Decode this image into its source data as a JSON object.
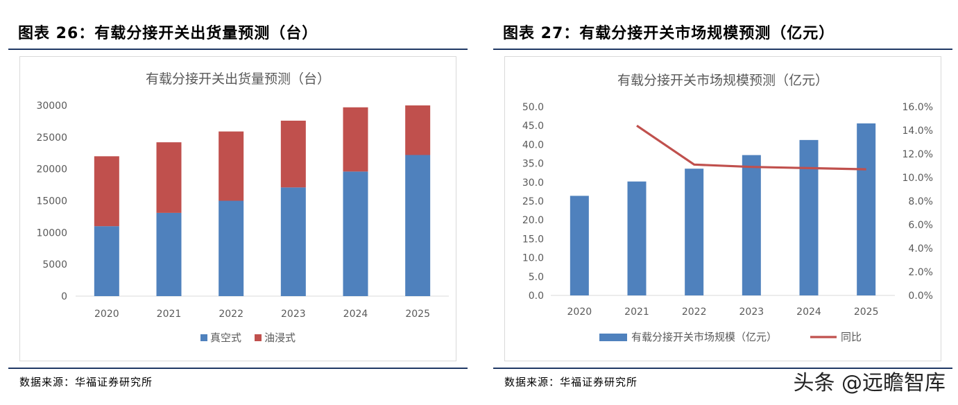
{
  "left": {
    "figure_title": "图表 26：有载分接开关出货量预测（台）",
    "source": "数据来源：华福证券研究所",
    "chart_data": {
      "type": "bar",
      "stacked": true,
      "title": "有载分接开关出货量预测（台）",
      "categories": [
        "2020",
        "2021",
        "2022",
        "2023",
        "2024",
        "2025"
      ],
      "series": [
        {
          "name": "真空式",
          "color": "#4f81bd",
          "values": [
            11000,
            13100,
            15000,
            17100,
            19600,
            22200
          ]
        },
        {
          "name": "油浸式",
          "color": "#c0504d",
          "values": [
            11000,
            11100,
            10900,
            10500,
            10100,
            7800
          ]
        }
      ],
      "ylim": [
        0,
        30000
      ],
      "yticks": [
        "0",
        "5000",
        "10000",
        "15000",
        "20000",
        "25000",
        "30000"
      ],
      "legend": "bottom",
      "grid": false
    }
  },
  "right": {
    "figure_title": "图表 27：有载分接开关市场规模预测（亿元）",
    "source": "数据来源：华福证券研究所",
    "chart_data": {
      "type": "bar",
      "title": "有载分接开关市场规模预测（亿元）",
      "categories": [
        "2020",
        "2021",
        "2022",
        "2023",
        "2024",
        "2025"
      ],
      "series": [
        {
          "name": "有载分接开关市场规模（亿元）",
          "type": "bar",
          "axis": "left",
          "color": "#4f81bd",
          "values": [
            26.4,
            30.2,
            33.6,
            37.2,
            41.2,
            45.6
          ]
        },
        {
          "name": "同比",
          "type": "line",
          "axis": "right",
          "color": "#c0504d",
          "values": [
            null,
            14.4,
            11.1,
            10.9,
            10.8,
            10.7
          ]
        }
      ],
      "ylim_left": [
        0,
        50
      ],
      "yticks_left": [
        "0.0",
        "5.0",
        "10.0",
        "15.0",
        "20.0",
        "25.0",
        "30.0",
        "35.0",
        "40.0",
        "45.0",
        "50.0"
      ],
      "ylim_right": [
        0,
        16
      ],
      "yticks_right": [
        "0.0%",
        "2.0%",
        "4.0%",
        "6.0%",
        "8.0%",
        "10.0%",
        "12.0%",
        "14.0%",
        "16.0%"
      ],
      "legend": "bottom",
      "grid": false
    }
  },
  "watermark": "头条 @远瞻智库"
}
